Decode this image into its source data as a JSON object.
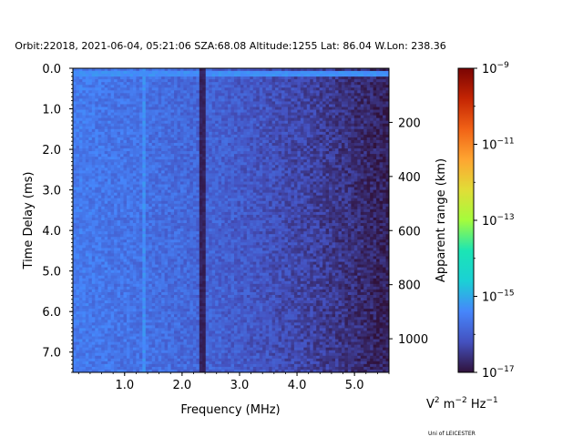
{
  "chart_data": {
    "type": "heatmap",
    "title": "Orbit:22018, 2021-06-04, 05:21:06 SZA:68.08 Altitude:1255 Lat: 86.04 W.Lon: 238.36",
    "xlabel": "Frequency (MHz)",
    "ylabel": "Time Delay (ms)",
    "y2label": "Apparent range (km)",
    "xlim": [
      0.1,
      5.6
    ],
    "ylim": [
      7.5,
      0.0
    ],
    "x_ticks": [
      {
        "value": 1.0,
        "label": "1.0"
      },
      {
        "value": 2.0,
        "label": "2.0"
      },
      {
        "value": 3.0,
        "label": "3.0"
      },
      {
        "value": 4.0,
        "label": "4.0"
      },
      {
        "value": 5.0,
        "label": "5.0"
      }
    ],
    "y_ticks": [
      {
        "value": 0.0,
        "label": "0.0"
      },
      {
        "value": 1.0,
        "label": "1.0"
      },
      {
        "value": 2.0,
        "label": "2.0"
      },
      {
        "value": 3.0,
        "label": "3.0"
      },
      {
        "value": 4.0,
        "label": "4.0"
      },
      {
        "value": 5.0,
        "label": "5.0"
      },
      {
        "value": 6.0,
        "label": "6.0"
      },
      {
        "value": 7.0,
        "label": "7.0"
      }
    ],
    "range_ticks_km": [
      {
        "value": 200,
        "label": "200"
      },
      {
        "value": 400,
        "label": "400"
      },
      {
        "value": 600,
        "label": "600"
      },
      {
        "value": 800,
        "label": "800"
      },
      {
        "value": 1000,
        "label": "1000"
      }
    ],
    "km_per_ms": 149.9,
    "colorbar": {
      "scale": "log",
      "min": 1e-17,
      "max": 1e-09,
      "ticks": [
        {
          "exp": -9,
          "base": "10",
          "sup": "−9"
        },
        {
          "exp": -11,
          "base": "10",
          "sup": "−11"
        },
        {
          "exp": -13,
          "base": "10",
          "sup": "−13"
        },
        {
          "exp": -15,
          "base": "10",
          "sup": "−15"
        },
        {
          "exp": -17,
          "base": "10",
          "sup": "−17"
        }
      ],
      "units": {
        "v": "V",
        "v_sup": "2",
        "m": " m",
        "m_sup": "−2",
        "hz": " Hz",
        "hz_sup": "−1"
      },
      "colormap": "turbo"
    },
    "grid": false,
    "features": [
      {
        "description": "bright band near top",
        "time_ms": 0.15,
        "log10_level": -15.3
      },
      {
        "description": "bright vertical line",
        "freq_mhz": 1.35,
        "log10_level": -15.3
      },
      {
        "description": "dark vertical line",
        "freq_mhz": 2.35,
        "log10_level": -16.9
      }
    ],
    "background_log10_range": [
      -16.9,
      -15.6
    ]
  },
  "credit": "Uni of LEICESTER"
}
